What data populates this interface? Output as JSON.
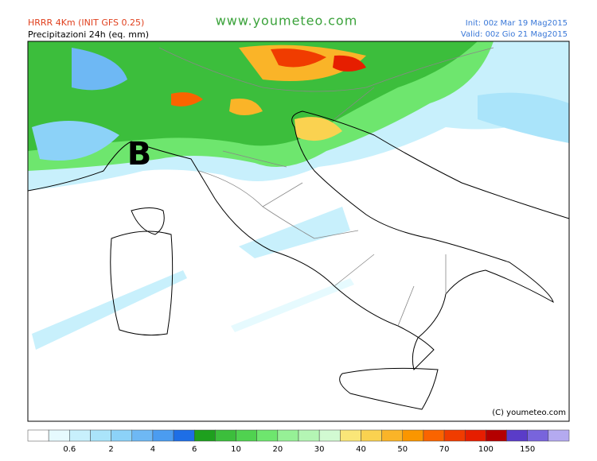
{
  "header": {
    "model": "HRRR 4Km (INIT GFS 0.25)",
    "field": "Precipitazioni 24h (eq. mm)",
    "site": "www.youmeteo.com",
    "init": "Init: 00z Mar 19 Mag2015",
    "valid": "Valid: 00z Gio 21 Mag2015"
  },
  "map": {
    "pressure_label": "B",
    "copyright": "(C) youmeteo.com"
  },
  "legend": {
    "colors": [
      "#ffffff",
      "#e6fafe",
      "#c8f0fc",
      "#aae4fa",
      "#8cd2f8",
      "#6eb8f4",
      "#4b9cf0",
      "#1e6ee6",
      "#1ea01e",
      "#3cbe3c",
      "#50d250",
      "#6ee66e",
      "#96f096",
      "#b4f5b4",
      "#d2fad2",
      "#fae678",
      "#fad250",
      "#fab428",
      "#fa9600",
      "#fa6400",
      "#f03c00",
      "#e61e00",
      "#b40000",
      "#5a3cc8",
      "#7864dc",
      "#b4aaf0"
    ],
    "labels": [
      0.6,
      2,
      4,
      6,
      10,
      20,
      30,
      40,
      50,
      70,
      100,
      150
    ]
  }
}
